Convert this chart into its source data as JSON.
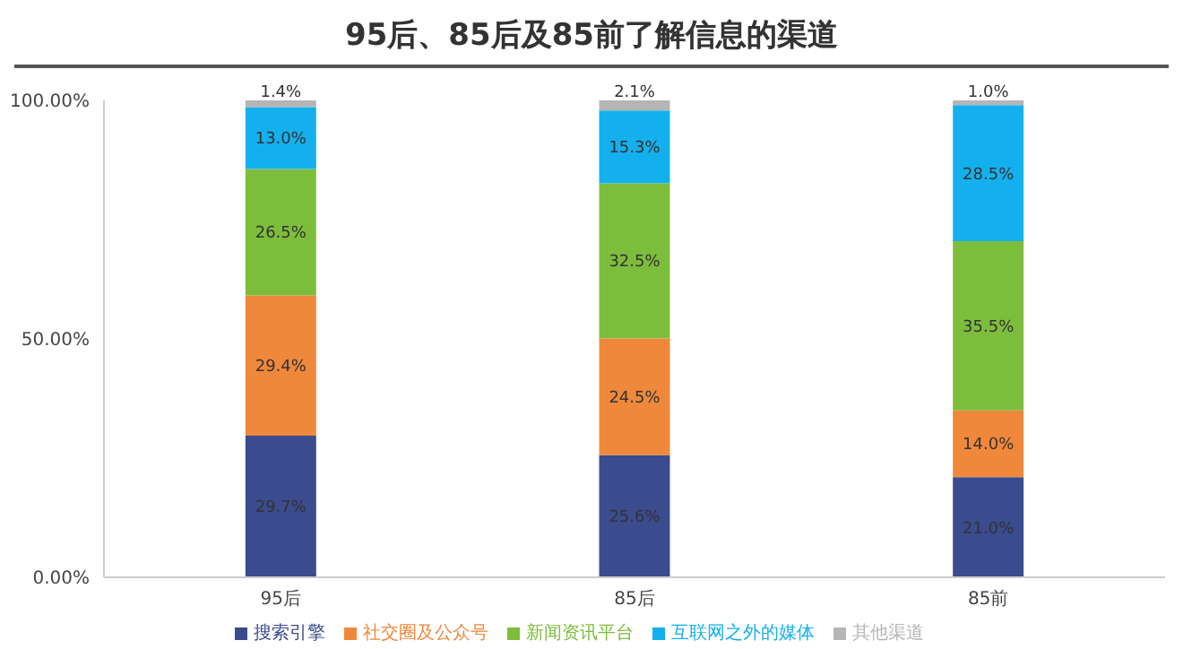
{
  "chart_data": {
    "type": "bar",
    "title": "95后、85后及85前了解信息的渠道",
    "categories": [
      "95后",
      "85后",
      "85前"
    ],
    "stacked": true,
    "series": [
      {
        "name": "搜索引擎",
        "color": "#3a4b8e",
        "values": [
          29.7,
          25.6,
          21.0
        ],
        "value_labels": [
          "29.7%",
          "25.6%",
          "21.0%"
        ]
      },
      {
        "name": "社交圈及公众号",
        "color": "#f0883c",
        "values": [
          29.4,
          24.5,
          14.0
        ],
        "value_labels": [
          "29.4%",
          "24.5%",
          "14.0%"
        ]
      },
      {
        "name": "新闻资讯平台",
        "color": "#7dbd3c",
        "values": [
          26.5,
          32.5,
          35.5
        ],
        "value_labels": [
          "26.5%",
          "32.5%",
          "35.5%"
        ]
      },
      {
        "name": "互联网之外的媒体",
        "color": "#14b0ee",
        "values": [
          13.0,
          15.3,
          28.5
        ],
        "value_labels": [
          "13.0%",
          "15.3%",
          "28.5%"
        ]
      },
      {
        "name": "其他渠道",
        "color": "#b5b5b5",
        "values": [
          1.4,
          2.1,
          1.0
        ],
        "value_labels": [
          "1.4%",
          "2.1%",
          "1.0%"
        ]
      }
    ],
    "ylim": [
      0,
      100
    ],
    "yticks": [
      {
        "value": 0,
        "label": "0.00%"
      },
      {
        "value": 50,
        "label": "50.00%"
      },
      {
        "value": 100,
        "label": "100.00%"
      }
    ],
    "grid": false,
    "legend": "bottom"
  }
}
